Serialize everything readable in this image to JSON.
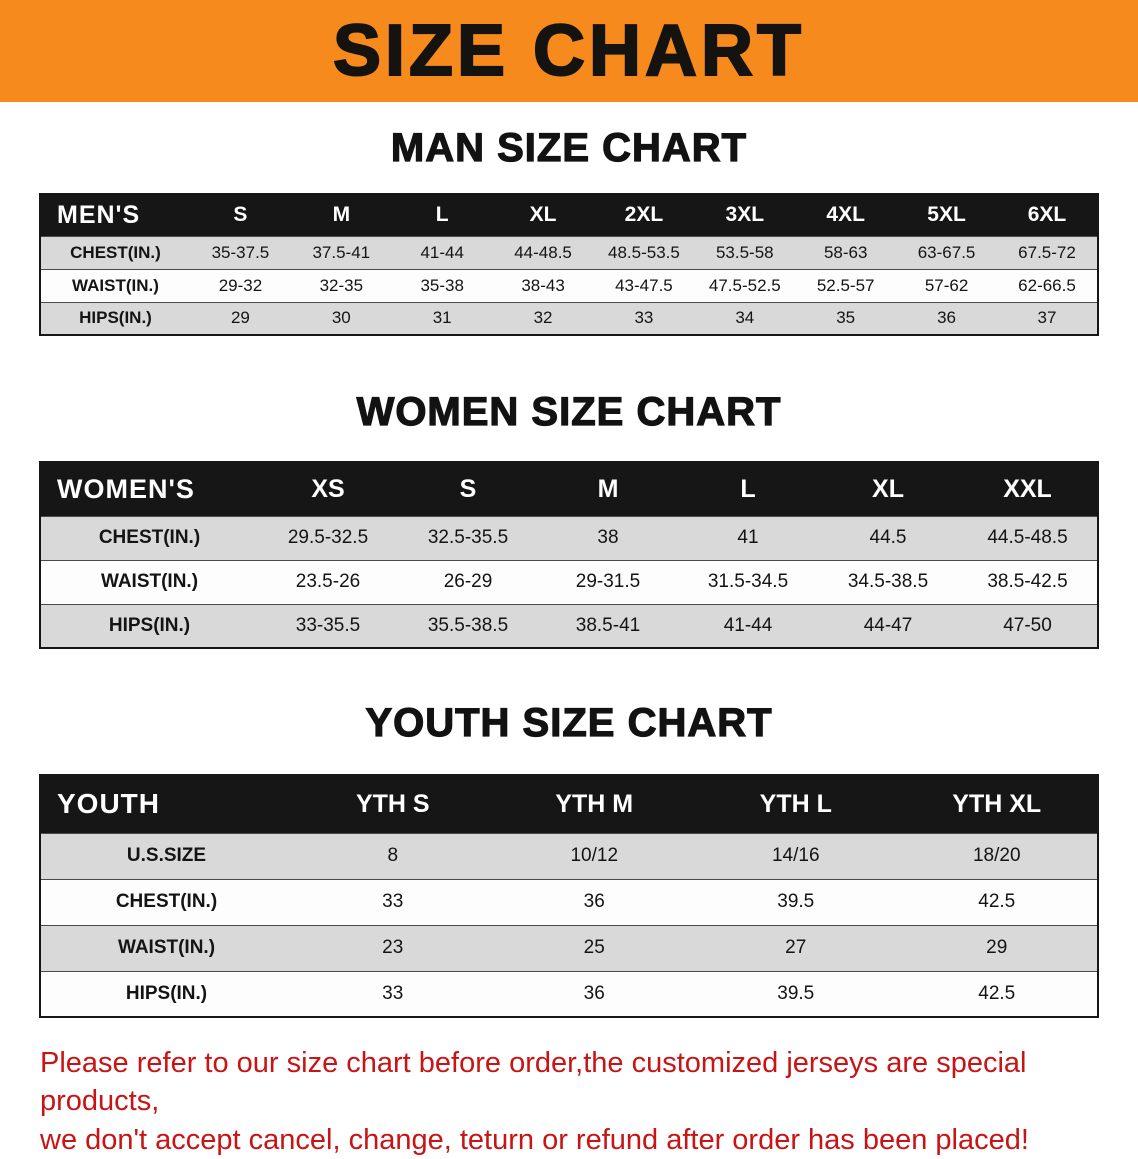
{
  "banner": {
    "title": "SIZE CHART",
    "bg_color": "#f68a1c",
    "text_color": "#151310"
  },
  "men": {
    "heading": "MAN SIZE CHART",
    "header": [
      "MEN'S",
      "S",
      "M",
      "L",
      "XL",
      "2XL",
      "3XL",
      "4XL",
      "5XL",
      "6XL"
    ],
    "rows": [
      {
        "label": "CHEST(IN.)",
        "values": [
          "35-37.5",
          "37.5-41",
          "41-44",
          "44-48.5",
          "48.5-53.5",
          "53.5-58",
          "58-63",
          "63-67.5",
          "67.5-72"
        ]
      },
      {
        "label": "WAIST(IN.)",
        "values": [
          "29-32",
          "32-35",
          "35-38",
          "38-43",
          "43-47.5",
          "47.5-52.5",
          "52.5-57",
          "57-62",
          "62-66.5"
        ]
      },
      {
        "label": "HIPS(IN.)",
        "values": [
          "29",
          "30",
          "31",
          "32",
          "33",
          "34",
          "35",
          "36",
          "37"
        ]
      }
    ]
  },
  "women": {
    "heading": "WOMEN SIZE CHART",
    "header": [
      "WOMEN'S",
      "XS",
      "S",
      "M",
      "L",
      "XL",
      "XXL"
    ],
    "rows": [
      {
        "label": "CHEST(IN.)",
        "values": [
          "29.5-32.5",
          "32.5-35.5",
          "38",
          "41",
          "44.5",
          "44.5-48.5"
        ]
      },
      {
        "label": "WAIST(IN.)",
        "values": [
          "23.5-26",
          "26-29",
          "29-31.5",
          "31.5-34.5",
          "34.5-38.5",
          "38.5-42.5"
        ]
      },
      {
        "label": "HIPS(IN.)",
        "values": [
          "33-35.5",
          "35.5-38.5",
          "38.5-41",
          "41-44",
          "44-47",
          "47-50"
        ]
      }
    ]
  },
  "youth": {
    "heading": "YOUTH SIZE CHART",
    "header": [
      "YOUTH",
      "YTH S",
      "YTH M",
      "YTH L",
      "YTH XL"
    ],
    "rows": [
      {
        "label": "U.S.SIZE",
        "values": [
          "8",
          "10/12",
          "14/16",
          "18/20"
        ]
      },
      {
        "label": "CHEST(IN.)",
        "values": [
          "33",
          "36",
          "39.5",
          "42.5"
        ]
      },
      {
        "label": "WAIST(IN.)",
        "values": [
          "23",
          "25",
          "27",
          "29"
        ]
      },
      {
        "label": "HIPS(IN.)",
        "values": [
          "33",
          "36",
          "39.5",
          "42.5"
        ]
      }
    ]
  },
  "disclaimer": {
    "line1": "Please refer to our size chart before order,the customized jerseys are special products,",
    "line2": "we don't accept cancel, change, teturn or refund after order has been placed!",
    "text_color": "#c81414"
  }
}
